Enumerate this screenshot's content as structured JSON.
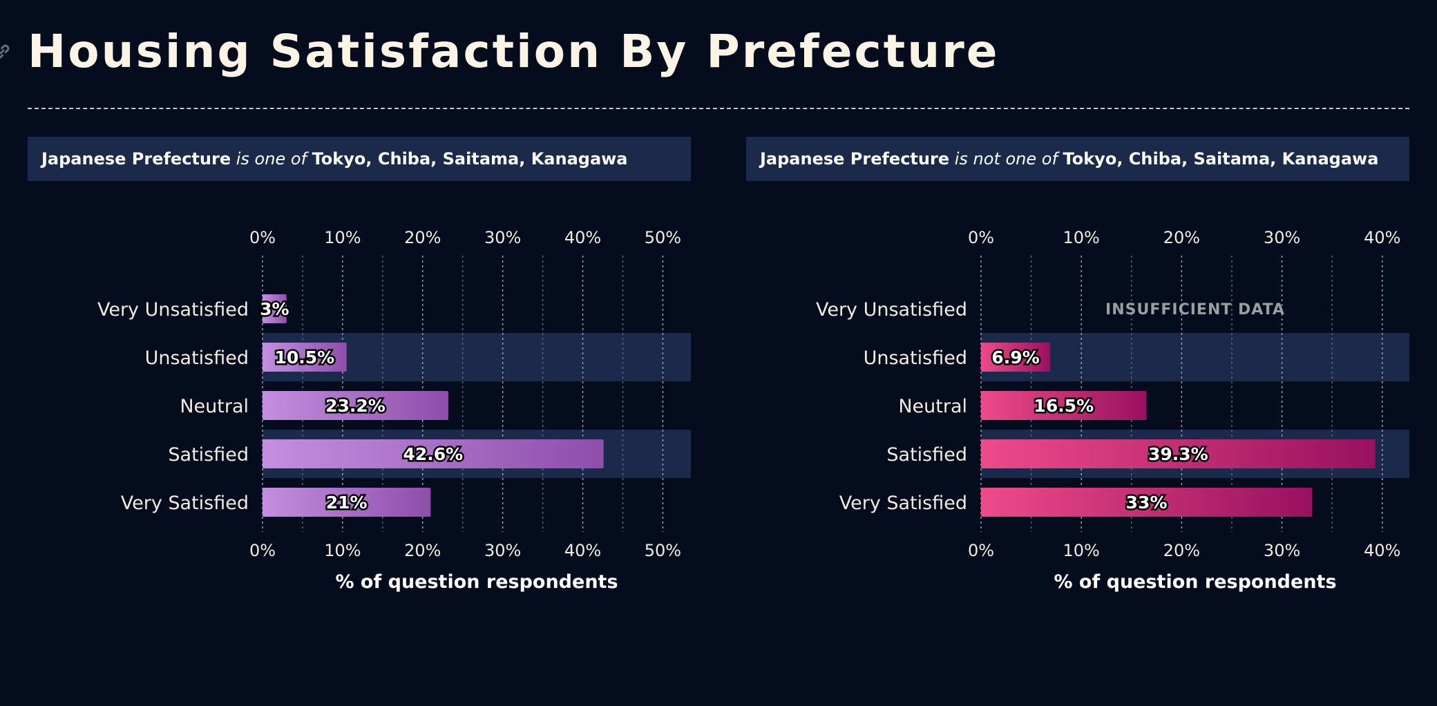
{
  "page": {
    "title": "Housing Satisfaction By Prefecture"
  },
  "chart_data": [
    {
      "type": "bar",
      "orientation": "horizontal",
      "filter": {
        "field": "Japanese Prefecture",
        "operator": "is one of",
        "values": "Tokyo, Chiba, Saitama, Kanagawa"
      },
      "categories": [
        "Very Unsatisfied",
        "Unsatisfied",
        "Neutral",
        "Satisfied",
        "Very Satisfied"
      ],
      "values": [
        3,
        10.5,
        23.2,
        42.6,
        21
      ],
      "value_labels": [
        "3%",
        "10.5%",
        "23.2%",
        "42.6%",
        "21%"
      ],
      "xlim": [
        0,
        53.5
      ],
      "xticks": [
        0,
        10,
        20,
        30,
        40,
        50
      ],
      "xtick_labels": [
        "0%",
        "10%",
        "20%",
        "30%",
        "40%",
        "50%"
      ],
      "xlabel": "% of question respondents",
      "gradient": [
        "#c48fe0",
        "#8e4eaa"
      ],
      "grid": true
    },
    {
      "type": "bar",
      "orientation": "horizontal",
      "filter": {
        "field": "Japanese Prefecture",
        "operator": "is not one of",
        "values": "Tokyo, Chiba, Saitama, Kanagawa"
      },
      "categories": [
        "Very Unsatisfied",
        "Unsatisfied",
        "Neutral",
        "Satisfied",
        "Very Satisfied"
      ],
      "values": [
        null,
        6.9,
        16.5,
        39.3,
        33
      ],
      "value_labels": [
        "",
        "6.9%",
        "16.5%",
        "39.3%",
        "33%"
      ],
      "missing_label": "INSUFFICIENT DATA",
      "xlim": [
        0,
        42.7
      ],
      "xticks": [
        0,
        10,
        20,
        30,
        40
      ],
      "xtick_labels": [
        "0%",
        "10%",
        "20%",
        "30%",
        "40%"
      ],
      "xlabel": "% of question respondents",
      "gradient": [
        "#ee4b8a",
        "#98115f"
      ],
      "grid": true
    }
  ],
  "colors": {
    "background": "#040c1e",
    "band": "#1b2a4b",
    "title": "#fbf3e4"
  }
}
